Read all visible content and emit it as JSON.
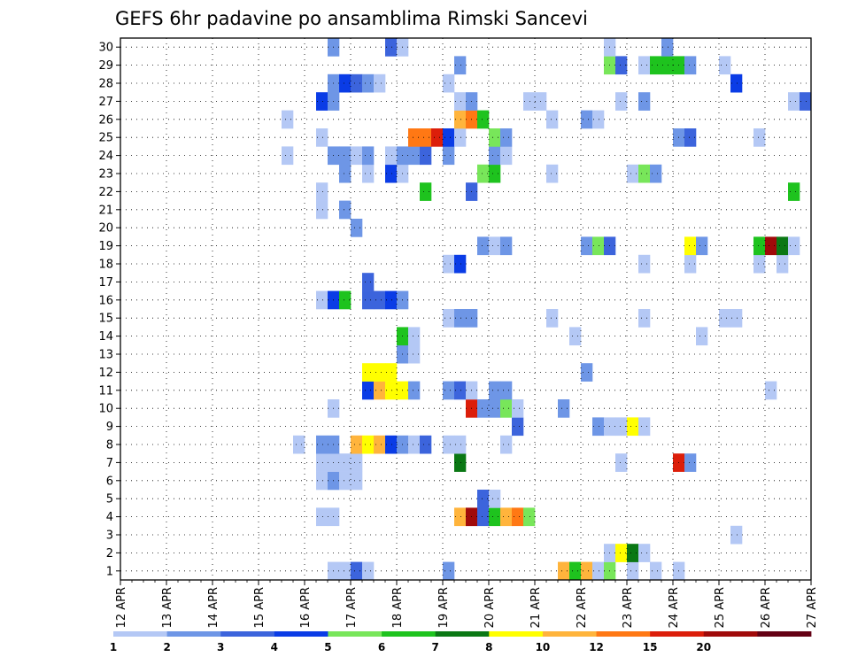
{
  "chart_data": {
    "type": "heatmap",
    "title": "GEFS 6hr padavine po ansamblima Rimski Sancevi",
    "xlabel": "",
    "ylabel": "",
    "y_ticks": [
      1,
      2,
      3,
      4,
      5,
      6,
      7,
      8,
      9,
      10,
      11,
      12,
      13,
      14,
      15,
      16,
      17,
      18,
      19,
      20,
      21,
      22,
      23,
      24,
      25,
      26,
      27,
      28,
      29,
      30
    ],
    "x_ticks": [
      "12 APR",
      "13 APR",
      "14 APR",
      "15 APR",
      "16 APR",
      "17 APR",
      "18 APR",
      "19 APR",
      "20 APR",
      "21 APR",
      "22 APR",
      "23 APR",
      "24 APR",
      "25 APR",
      "26 APR",
      "27 APR"
    ],
    "x_range": [
      0,
      60
    ],
    "ylim": [
      0.5,
      30.5
    ],
    "grid": true,
    "legend": {
      "placement": "bottom",
      "labels": [
        "1",
        "2",
        "3",
        "4",
        "5",
        "6",
        "7",
        "8",
        "10",
        "12",
        "15",
        "20"
      ],
      "colors": [
        "#b4c8f5",
        "#6e96e6",
        "#3c64dc",
        "#0a3ce6",
        "#78e65a",
        "#1ec31e",
        "#0a7814",
        "#ffff00",
        "#ffb43c",
        "#ff7814",
        "#dc1e0a",
        "#a00a0a",
        "#640014"
      ]
    },
    "cells": [
      [
        1,
        19,
        1
      ],
      [
        1,
        20,
        1
      ],
      [
        1,
        21,
        3
      ],
      [
        1,
        22,
        1
      ],
      [
        1,
        29,
        2
      ],
      [
        1,
        39,
        9
      ],
      [
        1,
        40,
        6
      ],
      [
        1,
        41,
        9
      ],
      [
        1,
        42,
        1
      ],
      [
        1,
        43,
        5
      ],
      [
        1,
        45,
        1
      ],
      [
        1,
        47,
        1
      ],
      [
        1,
        49,
        1
      ],
      [
        2,
        43,
        1
      ],
      [
        2,
        44,
        8
      ],
      [
        2,
        45,
        7
      ],
      [
        2,
        46,
        1
      ],
      [
        3,
        54,
        1
      ],
      [
        4,
        18,
        1
      ],
      [
        4,
        19,
        1
      ],
      [
        4,
        30,
        9
      ],
      [
        4,
        31,
        12
      ],
      [
        4,
        32,
        3
      ],
      [
        4,
        33,
        6
      ],
      [
        4,
        34,
        9
      ],
      [
        4,
        35,
        10
      ],
      [
        4,
        36,
        5
      ],
      [
        5,
        32,
        3
      ],
      [
        5,
        33,
        1
      ],
      [
        6,
        18,
        1
      ],
      [
        6,
        19,
        2
      ],
      [
        6,
        20,
        1
      ],
      [
        6,
        21,
        1
      ],
      [
        7,
        18,
        1
      ],
      [
        7,
        19,
        1
      ],
      [
        7,
        20,
        1
      ],
      [
        7,
        21,
        1
      ],
      [
        7,
        30,
        7
      ],
      [
        7,
        44,
        1
      ],
      [
        7,
        49,
        11
      ],
      [
        7,
        50,
        2
      ],
      [
        8,
        16,
        1
      ],
      [
        8,
        18,
        2
      ],
      [
        8,
        19,
        2
      ],
      [
        8,
        21,
        9
      ],
      [
        8,
        22,
        8
      ],
      [
        8,
        23,
        9
      ],
      [
        8,
        24,
        4
      ],
      [
        8,
        25,
        2
      ],
      [
        8,
        26,
        1
      ],
      [
        8,
        27,
        3
      ],
      [
        8,
        29,
        1
      ],
      [
        8,
        30,
        1
      ],
      [
        8,
        34,
        1
      ],
      [
        9,
        35,
        3
      ],
      [
        9,
        42,
        2
      ],
      [
        9,
        43,
        1
      ],
      [
        9,
        44,
        1
      ],
      [
        9,
        45,
        8
      ],
      [
        9,
        46,
        1
      ],
      [
        10,
        19,
        1
      ],
      [
        10,
        31,
        11
      ],
      [
        10,
        32,
        2
      ],
      [
        10,
        33,
        2
      ],
      [
        10,
        34,
        5
      ],
      [
        10,
        35,
        1
      ],
      [
        10,
        39,
        2
      ],
      [
        11,
        22,
        4
      ],
      [
        11,
        23,
        9
      ],
      [
        11,
        24,
        8
      ],
      [
        11,
        25,
        8
      ],
      [
        11,
        26,
        2
      ],
      [
        11,
        29,
        2
      ],
      [
        11,
        30,
        3
      ],
      [
        11,
        31,
        1
      ],
      [
        11,
        33,
        2
      ],
      [
        11,
        34,
        2
      ],
      [
        11,
        57,
        1
      ],
      [
        12,
        22,
        8
      ],
      [
        12,
        23,
        8
      ],
      [
        12,
        24,
        8
      ],
      [
        12,
        41,
        2
      ],
      [
        13,
        25,
        2
      ],
      [
        13,
        26,
        1
      ],
      [
        14,
        25,
        6
      ],
      [
        14,
        26,
        1
      ],
      [
        14,
        40,
        1
      ],
      [
        14,
        51,
        1
      ],
      [
        15,
        29,
        1
      ],
      [
        15,
        30,
        2
      ],
      [
        15,
        31,
        2
      ],
      [
        15,
        38,
        1
      ],
      [
        15,
        46,
        1
      ],
      [
        15,
        53,
        1
      ],
      [
        15,
        54,
        1
      ],
      [
        16,
        18,
        1
      ],
      [
        16,
        19,
        4
      ],
      [
        16,
        20,
        6
      ],
      [
        16,
        22,
        3
      ],
      [
        16,
        23,
        3
      ],
      [
        16,
        24,
        4
      ],
      [
        16,
        25,
        2
      ],
      [
        17,
        22,
        3
      ],
      [
        18,
        29,
        1
      ],
      [
        18,
        30,
        4
      ],
      [
        18,
        46,
        1
      ],
      [
        18,
        50,
        1
      ],
      [
        18,
        56,
        1
      ],
      [
        18,
        58,
        1
      ],
      [
        19,
        32,
        2
      ],
      [
        19,
        33,
        1
      ],
      [
        19,
        34,
        2
      ],
      [
        19,
        41,
        2
      ],
      [
        19,
        42,
        5
      ],
      [
        19,
        43,
        3
      ],
      [
        19,
        50,
        8
      ],
      [
        19,
        51,
        2
      ],
      [
        19,
        56,
        6
      ],
      [
        19,
        57,
        12
      ],
      [
        19,
        58,
        7
      ],
      [
        19,
        59,
        1
      ],
      [
        20,
        21,
        2
      ],
      [
        21,
        18,
        1
      ],
      [
        21,
        20,
        2
      ],
      [
        22,
        18,
        1
      ],
      [
        22,
        27,
        6
      ],
      [
        22,
        31,
        3
      ],
      [
        22,
        59,
        6
      ],
      [
        23,
        20,
        2
      ],
      [
        23,
        22,
        1
      ],
      [
        23,
        24,
        4
      ],
      [
        23,
        25,
        1
      ],
      [
        23,
        32,
        5
      ],
      [
        23,
        33,
        6
      ],
      [
        23,
        38,
        1
      ],
      [
        23,
        45,
        1
      ],
      [
        23,
        46,
        5
      ],
      [
        23,
        47,
        2
      ],
      [
        24,
        15,
        1
      ],
      [
        24,
        19,
        2
      ],
      [
        24,
        20,
        2
      ],
      [
        24,
        21,
        1
      ],
      [
        24,
        22,
        2
      ],
      [
        24,
        24,
        1
      ],
      [
        24,
        25,
        2
      ],
      [
        24,
        26,
        2
      ],
      [
        24,
        27,
        3
      ],
      [
        24,
        29,
        2
      ],
      [
        24,
        33,
        2
      ],
      [
        24,
        34,
        1
      ],
      [
        25,
        18,
        1
      ],
      [
        25,
        26,
        10
      ],
      [
        25,
        27,
        10
      ],
      [
        25,
        28,
        11
      ],
      [
        25,
        29,
        4
      ],
      [
        25,
        30,
        1
      ],
      [
        25,
        33,
        5
      ],
      [
        25,
        34,
        2
      ],
      [
        25,
        49,
        2
      ],
      [
        25,
        50,
        3
      ],
      [
        25,
        56,
        1
      ],
      [
        26,
        15,
        1
      ],
      [
        26,
        30,
        9
      ],
      [
        26,
        31,
        10
      ],
      [
        26,
        32,
        6
      ],
      [
        26,
        38,
        1
      ],
      [
        26,
        41,
        2
      ],
      [
        26,
        42,
        1
      ],
      [
        27,
        18,
        4
      ],
      [
        27,
        19,
        2
      ],
      [
        27,
        30,
        1
      ],
      [
        27,
        31,
        2
      ],
      [
        27,
        36,
        1
      ],
      [
        27,
        37,
        1
      ],
      [
        27,
        44,
        1
      ],
      [
        27,
        46,
        2
      ],
      [
        27,
        59,
        1
      ],
      [
        27,
        60,
        3
      ],
      [
        28,
        19,
        2
      ],
      [
        28,
        20,
        4
      ],
      [
        28,
        21,
        3
      ],
      [
        28,
        22,
        2
      ],
      [
        28,
        23,
        1
      ],
      [
        28,
        29,
        1
      ],
      [
        28,
        54,
        4
      ],
      [
        29,
        30,
        2
      ],
      [
        29,
        43,
        5
      ],
      [
        29,
        44,
        3
      ],
      [
        29,
        46,
        1
      ],
      [
        29,
        47,
        6
      ],
      [
        29,
        48,
        6
      ],
      [
        29,
        49,
        6
      ],
      [
        29,
        50,
        2
      ],
      [
        29,
        53,
        1
      ],
      [
        30,
        19,
        2
      ],
      [
        30,
        24,
        3
      ],
      [
        30,
        25,
        1
      ],
      [
        30,
        43,
        1
      ],
      [
        30,
        48,
        2
      ]
    ]
  }
}
